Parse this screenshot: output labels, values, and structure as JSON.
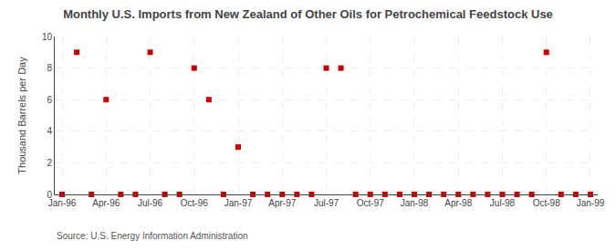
{
  "chart_data": {
    "type": "scatter",
    "title": "Monthly U.S. Imports from New Zealand of Other Oils for Petrochemical Feedstock Use",
    "y_label": "Thousand Barrels per Day",
    "annotations": [
      "Source: U.S. Energy Information Administration"
    ],
    "categories": [
      "Jan-96",
      null,
      null,
      "Apr-96",
      null,
      null,
      "Jul-96",
      null,
      null,
      "Oct-96",
      null,
      null,
      "Jan-97",
      null,
      null,
      "Apr-97",
      null,
      null,
      "Jul-97",
      null,
      null,
      "Oct-97",
      null,
      null,
      "Jan-98",
      null,
      null,
      "Apr-98",
      null,
      null,
      "Jul-98",
      null,
      null,
      "Oct-98",
      null,
      null,
      "Jan-99"
    ],
    "values": [
      0,
      9,
      0,
      6,
      0,
      0,
      9,
      0,
      0,
      8,
      6,
      0,
      3,
      0,
      0,
      0,
      0,
      0,
      8,
      8,
      0,
      0,
      0,
      0,
      0,
      0,
      0,
      0,
      0,
      0,
      0,
      0,
      0,
      9,
      0,
      0,
      0
    ],
    "color": "#cc0000",
    "marker": "square",
    "ylim": [
      0,
      10
    ],
    "yticks": [
      0,
      2,
      4,
      6,
      8,
      10
    ],
    "grid": true
  }
}
